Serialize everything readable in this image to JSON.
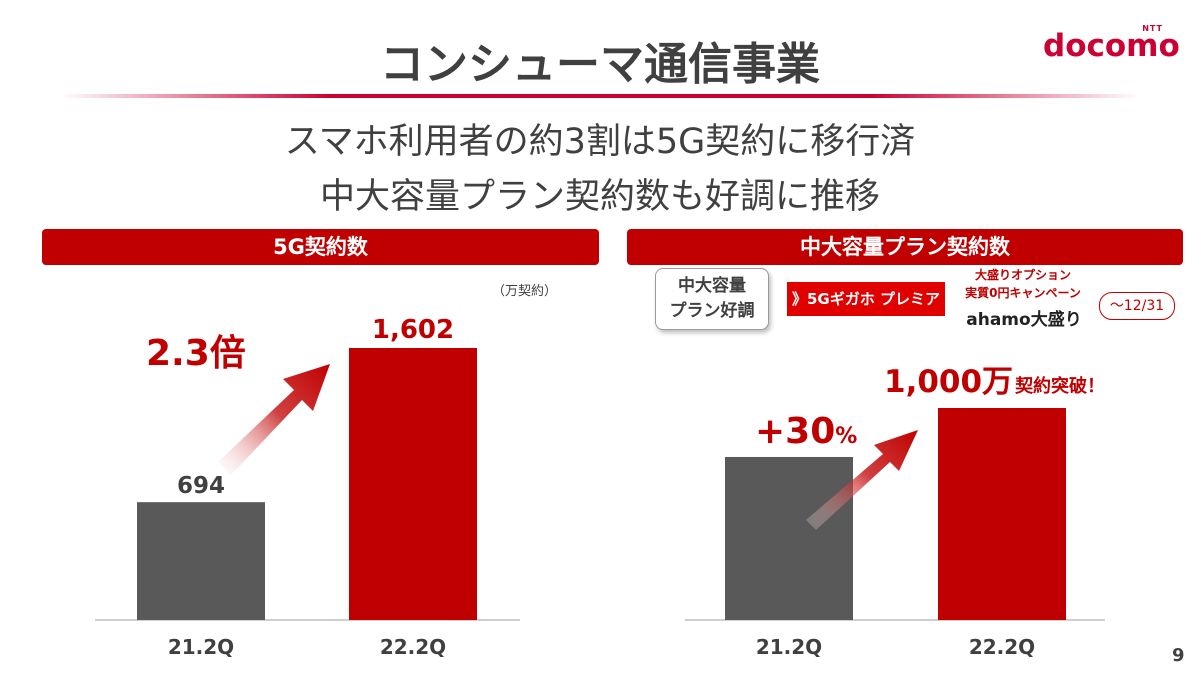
{
  "title": "コンシューマ通信事業",
  "logo": {
    "ntt": "NTT",
    "name": "docomo"
  },
  "subtitle_lines": [
    "スマホ利用者の約3割は5G契約に移行済",
    "中大容量プラン契約数も好調に推移"
  ],
  "page_number": "9",
  "colors": {
    "accent": "#c00000",
    "gray_bar": "#595959"
  },
  "chart_data": [
    {
      "type": "bar",
      "title": "5G契約数",
      "unit_label": "（万契約）",
      "categories": [
        "21.2Q",
        "22.2Q"
      ],
      "values": [
        694,
        1602
      ],
      "value_labels": [
        "694",
        "1,602"
      ],
      "growth_label": "2.3倍",
      "bar_colors": [
        "#595959",
        "#c00000"
      ]
    },
    {
      "type": "bar",
      "title": "中大容量プラン契約数",
      "categories": [
        "21.2Q",
        "22.2Q"
      ],
      "values": [
        769,
        1000
      ],
      "value_label_main": "1,000万",
      "value_label_suffix": "契約突破！",
      "growth_label_num": "+30",
      "growth_label_unit": "%",
      "bar_colors": [
        "#595959",
        "#c00000"
      ]
    }
  ],
  "promo": {
    "pill_line1": "中大容量",
    "pill_line2": "プラン好調",
    "gigaho": "》5Gギガホ プレミア",
    "option_line1": "大盛りオプション",
    "option_line2": "実質0円キャンペーン",
    "ahamo": "ahamo大盛り",
    "period": "～12/31"
  }
}
